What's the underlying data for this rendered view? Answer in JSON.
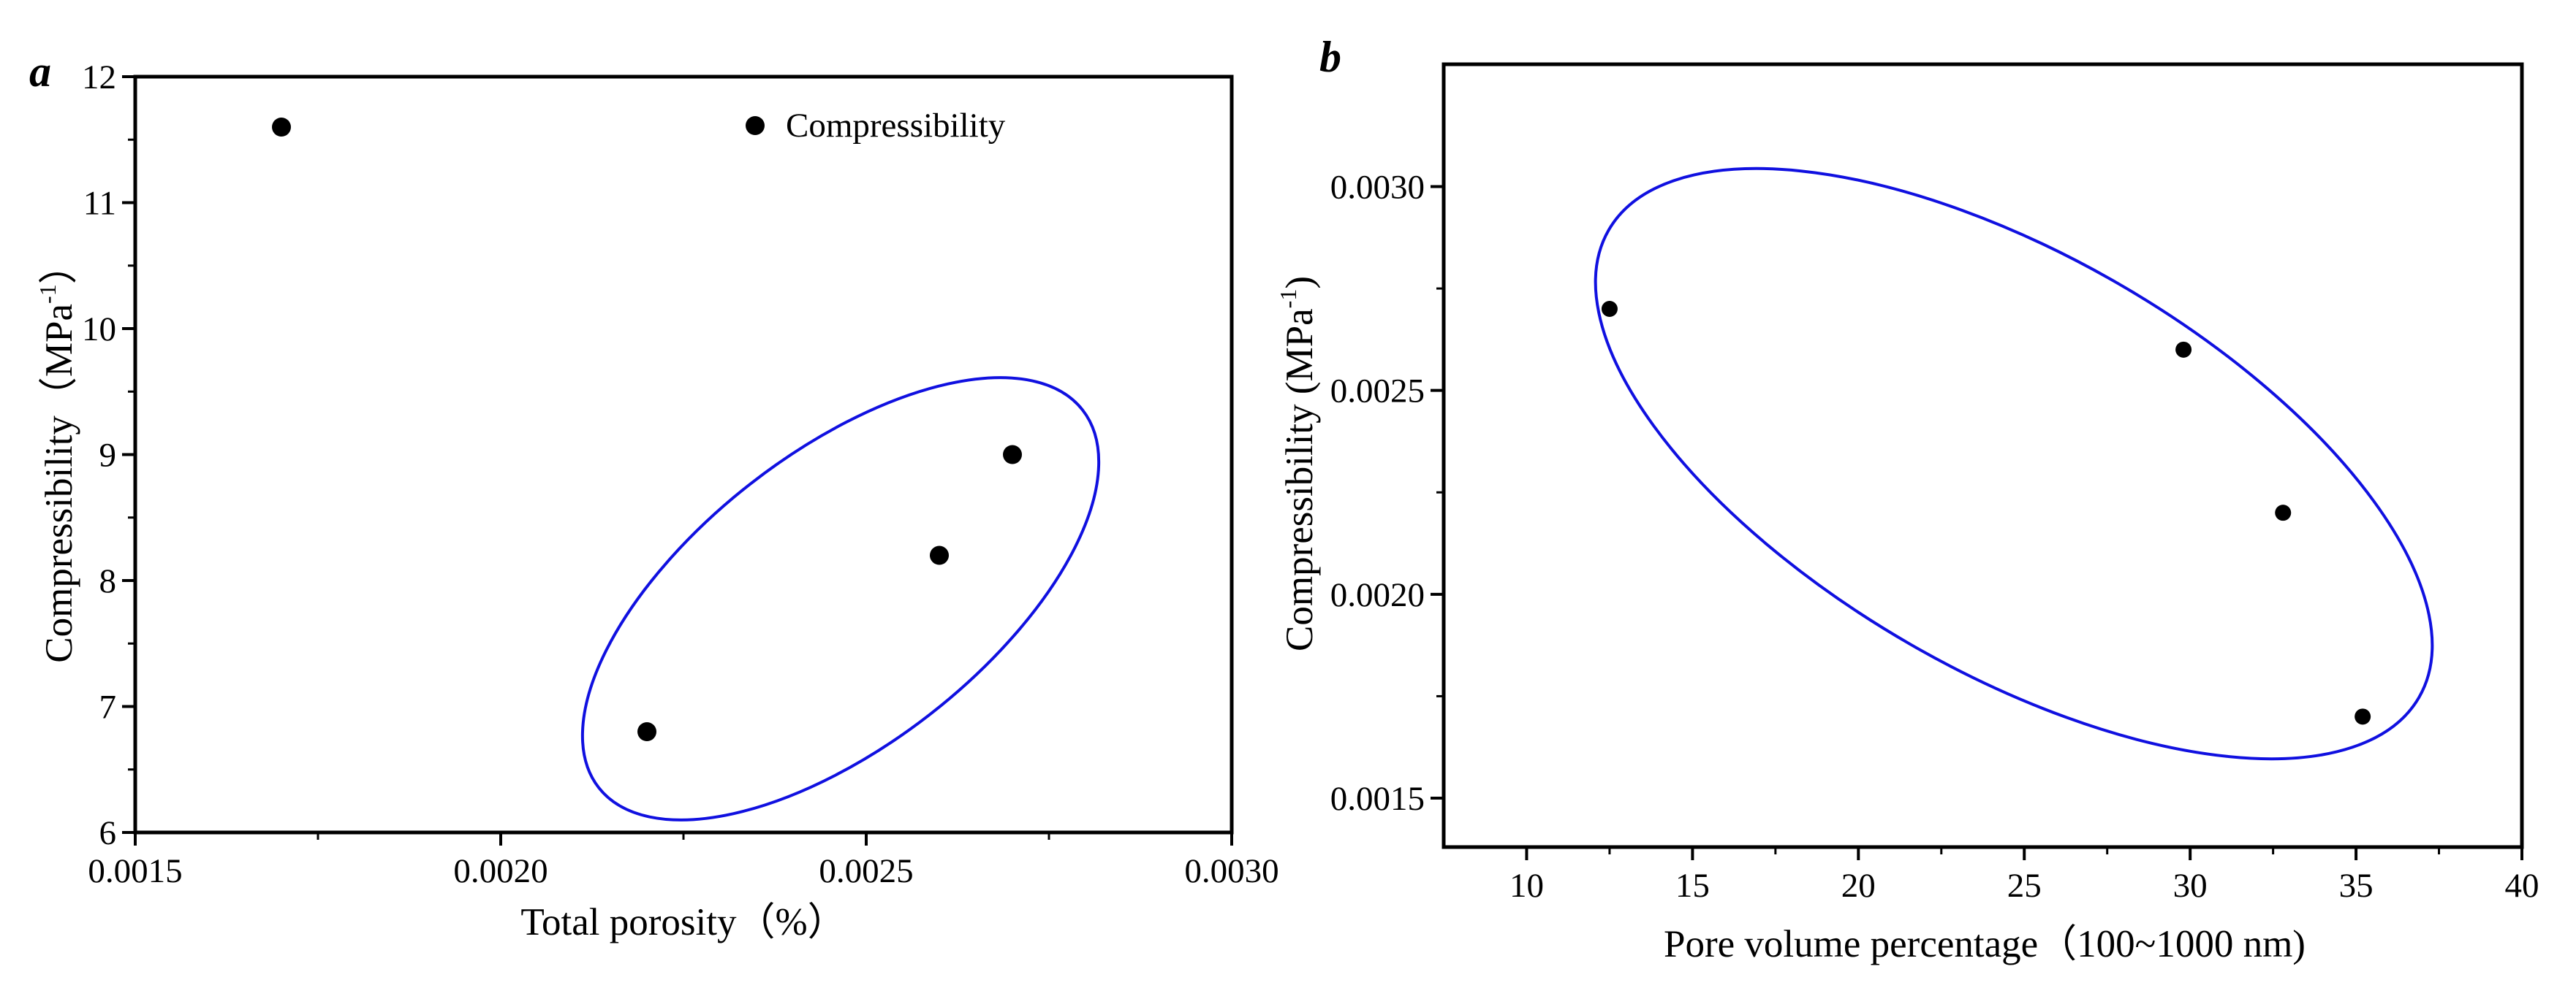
{
  "chart_data": [
    {
      "panel": "a",
      "type": "scatter",
      "xlabel": "Total porosity（%）",
      "ylabel": "Compressibility（MPa-1）",
      "ylabel_parts": {
        "main": "Compressibility（MPa",
        "sup": "-1",
        "end": "）"
      },
      "xlim": [
        0.0015,
        0.003
      ],
      "ylim": [
        6,
        12
      ],
      "xticks": [
        0.0015,
        0.002,
        0.0025,
        0.003
      ],
      "xtick_labels": [
        "0.0015",
        "0.0020",
        "0.0025",
        "0.0030"
      ],
      "yticks": [
        6,
        7,
        8,
        9,
        10,
        11,
        12
      ],
      "ytick_labels": [
        "6",
        "7",
        "8",
        "9",
        "10",
        "11",
        "12"
      ],
      "series": [
        {
          "name": "Compressibility",
          "x": [
            0.0017,
            0.0022,
            0.0026,
            0.0027
          ],
          "y": [
            11.6,
            6.8,
            8.2,
            9.0
          ]
        }
      ],
      "legend": {
        "label": "Compressibility",
        "position": "top-right"
      },
      "annotation": {
        "type": "ellipse",
        "color": "#1010e0",
        "encloses": [
          6.8,
          8.2,
          9.0
        ]
      }
    },
    {
      "panel": "b",
      "type": "scatter",
      "xlabel": "Pore volume percentage（100~1000 nm)",
      "ylabel": "Compressibility (MPa-1)",
      "ylabel_parts": {
        "main": "Compressibility (MPa",
        "sup": "-1",
        "end": ")"
      },
      "xlim": [
        7.5,
        40
      ],
      "ylim": [
        0.00138,
        0.0033
      ],
      "xticks": [
        10,
        15,
        20,
        25,
        30,
        35,
        40
      ],
      "xtick_labels": [
        "10",
        "15",
        "20",
        "25",
        "30",
        "35",
        "40"
      ],
      "yticks": [
        0.0015,
        0.002,
        0.0025,
        0.003
      ],
      "ytick_labels": [
        "0.0015",
        "0.0020",
        "0.0025",
        "0.0030"
      ],
      "series": [
        {
          "name": "Compressibility",
          "x": [
            12.5,
            29.8,
            32.8,
            35.2
          ],
          "y": [
            0.0027,
            0.0026,
            0.0022,
            0.0017
          ]
        }
      ],
      "annotation": {
        "type": "ellipse",
        "color": "#1010e0",
        "encloses": "all points"
      }
    }
  ],
  "colors": {
    "points": "#000000",
    "ellipse": "#1010e0",
    "axes": "#000000"
  }
}
